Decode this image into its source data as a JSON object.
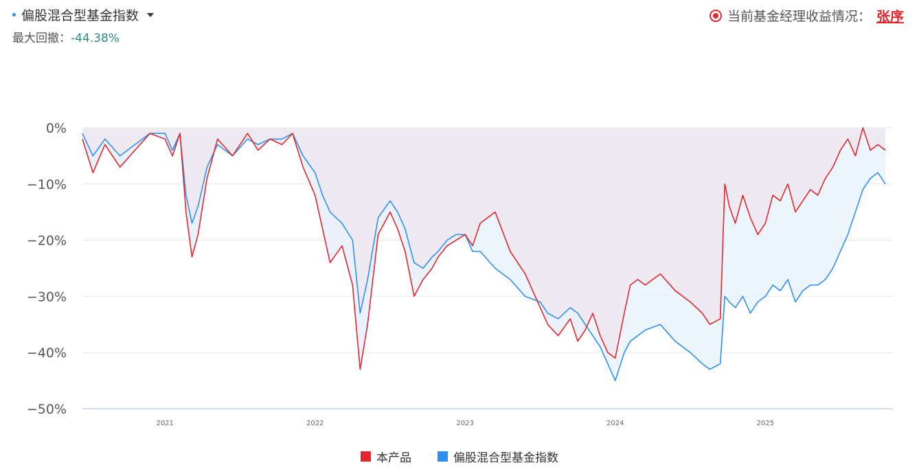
{
  "header": {
    "index_title": "偏股混合型基金指数",
    "drawdown_label": "最大回撤：",
    "drawdown_value": "-44.38%",
    "manager_label": "当前基金经理收益情况：",
    "manager_name": "张序"
  },
  "colors": {
    "product": "#e3262e",
    "index": "#2f8ff0",
    "grid": "#e6e6ef",
    "axis": "#9ec3e6",
    "fill_above": "#efeaf2",
    "fill_below": "#e9f2fb"
  },
  "legend": [
    {
      "name": "本产品",
      "color": "#e3262e"
    },
    {
      "name": "偏股混合型基金指数",
      "color": "#2f8ff0"
    }
  ],
  "chart_data": {
    "type": "line",
    "title": "",
    "xlabel": "",
    "ylabel": "",
    "ylim": [
      -50,
      0
    ],
    "xlim": [
      2020.45,
      2025.85
    ],
    "y_ticks": [
      0,
      -10,
      -20,
      -30,
      -40,
      -50
    ],
    "y_tick_labels": [
      "0%",
      "−10%",
      "−20%",
      "−30%",
      "−40%",
      "−50%"
    ],
    "x_ticks": [
      2021,
      2022,
      2023,
      2024,
      2025
    ],
    "x_tick_labels": [
      "2021",
      "2022",
      "2023",
      "2024",
      "2025"
    ],
    "grid": true,
    "legend_position": "bottom-center",
    "series": [
      {
        "name": "本产品",
        "color": "#e3262e",
        "x": [
          2020.45,
          2020.52,
          2020.6,
          2020.7,
          2020.8,
          2020.9,
          2021.0,
          2021.05,
          2021.1,
          2021.14,
          2021.18,
          2021.22,
          2021.28,
          2021.35,
          2021.45,
          2021.55,
          2021.62,
          2021.7,
          2021.78,
          2021.85,
          2021.92,
          2022.0,
          2022.05,
          2022.1,
          2022.18,
          2022.25,
          2022.3,
          2022.35,
          2022.42,
          2022.5,
          2022.55,
          2022.6,
          2022.66,
          2022.72,
          2022.78,
          2022.82,
          2022.88,
          2022.94,
          2023.0,
          2023.05,
          2023.1,
          2023.2,
          2023.3,
          2023.4,
          2023.5,
          2023.55,
          2023.62,
          2023.7,
          2023.75,
          2023.8,
          2023.85,
          2023.9,
          2023.95,
          2024.0,
          2024.06,
          2024.1,
          2024.15,
          2024.2,
          2024.3,
          2024.4,
          2024.5,
          2024.58,
          2024.63,
          2024.7,
          2024.73,
          2024.76,
          2024.8,
          2024.85,
          2024.9,
          2024.95,
          2025.0,
          2025.05,
          2025.1,
          2025.15,
          2025.2,
          2025.25,
          2025.3,
          2025.35,
          2025.4,
          2025.45,
          2025.5,
          2025.55,
          2025.6,
          2025.65,
          2025.7,
          2025.75,
          2025.8
        ],
        "values": [
          -2,
          -8,
          -3,
          -7,
          -4,
          -1,
          -2,
          -5,
          -1,
          -15,
          -23,
          -19,
          -9,
          -2,
          -5,
          -1,
          -4,
          -2,
          -3,
          -1,
          -7,
          -12,
          -18,
          -24,
          -21,
          -28,
          -43,
          -35,
          -19,
          -15,
          -18,
          -22,
          -30,
          -27,
          -25,
          -23,
          -21,
          -20,
          -19,
          -21,
          -17,
          -15,
          -22,
          -26,
          -32,
          -35,
          -37,
          -34,
          -38,
          -36,
          -33,
          -37,
          -40,
          -41,
          -33,
          -28,
          -27,
          -28,
          -26,
          -29,
          -31,
          -33,
          -35,
          -34,
          -10,
          -14,
          -17,
          -12,
          -16,
          -19,
          -17,
          -12,
          -13,
          -10,
          -15,
          -13,
          -11,
          -12,
          -9,
          -7,
          -4,
          -2,
          -5,
          0,
          -4,
          -3,
          -4
        ]
      },
      {
        "name": "偏股混合型基金指数",
        "color": "#2f8ff0",
        "x": [
          2020.45,
          2020.52,
          2020.6,
          2020.7,
          2020.8,
          2020.9,
          2021.0,
          2021.05,
          2021.1,
          2021.14,
          2021.18,
          2021.22,
          2021.28,
          2021.35,
          2021.45,
          2021.55,
          2021.62,
          2021.7,
          2021.78,
          2021.85,
          2021.92,
          2022.0,
          2022.05,
          2022.1,
          2022.18,
          2022.25,
          2022.3,
          2022.35,
          2022.42,
          2022.5,
          2022.55,
          2022.6,
          2022.66,
          2022.72,
          2022.78,
          2022.82,
          2022.88,
          2022.94,
          2023.0,
          2023.05,
          2023.1,
          2023.2,
          2023.3,
          2023.4,
          2023.5,
          2023.55,
          2023.62,
          2023.7,
          2023.75,
          2023.8,
          2023.85,
          2023.9,
          2023.95,
          2024.0,
          2024.06,
          2024.1,
          2024.15,
          2024.2,
          2024.3,
          2024.4,
          2024.5,
          2024.58,
          2024.63,
          2024.7,
          2024.73,
          2024.76,
          2024.8,
          2024.85,
          2024.9,
          2024.95,
          2025.0,
          2025.05,
          2025.1,
          2025.15,
          2025.2,
          2025.25,
          2025.3,
          2025.35,
          2025.4,
          2025.45,
          2025.5,
          2025.55,
          2025.6,
          2025.65,
          2025.7,
          2025.75,
          2025.8
        ],
        "values": [
          -1,
          -5,
          -2,
          -5,
          -3,
          -1,
          -1,
          -4,
          -1,
          -12,
          -17,
          -14,
          -7,
          -3,
          -5,
          -2,
          -3,
          -2,
          -2,
          -1,
          -5,
          -8,
          -12,
          -15,
          -17,
          -20,
          -33,
          -27,
          -16,
          -13,
          -15,
          -18,
          -24,
          -25,
          -23,
          -22,
          -20,
          -19,
          -19,
          -22,
          -22,
          -25,
          -27,
          -30,
          -31,
          -33,
          -34,
          -32,
          -33,
          -35,
          -37,
          -39,
          -42,
          -45,
          -40,
          -38,
          -37,
          -36,
          -35,
          -38,
          -40,
          -42,
          -43,
          -42,
          -30,
          -31,
          -32,
          -30,
          -33,
          -31,
          -30,
          -28,
          -29,
          -27,
          -31,
          -29,
          -28,
          -28,
          -27,
          -25,
          -22,
          -19,
          -15,
          -11,
          -9,
          -8,
          -10
        ]
      }
    ]
  }
}
